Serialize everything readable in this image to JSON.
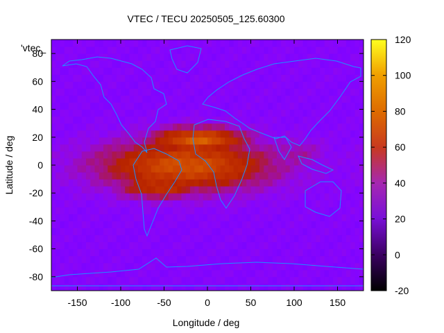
{
  "chart_data": {
    "type": "heatmap",
    "title": "VTEC / TECU 20250505_125.60300",
    "xlabel": "Longitude / deg",
    "ylabel": "Latitude / deg",
    "xlim": [
      -180,
      180
    ],
    "ylim": [
      -90,
      90
    ],
    "x_ticks": [
      -150,
      -100,
      -50,
      0,
      50,
      100,
      150
    ],
    "y_ticks": [
      -80,
      -60,
      -40,
      -20,
      0,
      20,
      40,
      60,
      80
    ],
    "legend_label": "'vtec_",
    "colorbar": {
      "range": [
        -20,
        120
      ],
      "ticks": [
        120,
        100,
        80,
        60,
        40,
        20,
        0,
        -20
      ],
      "palette": "gnuplot pm3d default (black-purple-red-orange-yellow)"
    },
    "background_level_tecu": 18,
    "enhancement_regions": [
      {
        "name": "equatorial-anomaly-core",
        "lon_center": -25,
        "lat_center": 0,
        "lon_halfwidth": 110,
        "lat_halfwidth": 20,
        "peak_tecu": 75
      },
      {
        "name": "northern-crest",
        "lon_center": -10,
        "lat_center": 18,
        "lon_halfwidth": 60,
        "lat_halfwidth": 10,
        "peak_tecu": 80
      },
      {
        "name": "southern-crest",
        "lon_center": -55,
        "lat_center": -15,
        "lon_halfwidth": 55,
        "lat_halfwidth": 10,
        "peak_tecu": 62
      },
      {
        "name": "eastward-tail",
        "lon_center": 100,
        "lat_center": 8,
        "lon_halfwidth": 40,
        "lat_halfwidth": 12,
        "peak_tecu": 35
      }
    ],
    "grid": false,
    "overlay": "coastline outlines (cyan)",
    "coastline_color": "#1e90ff"
  }
}
